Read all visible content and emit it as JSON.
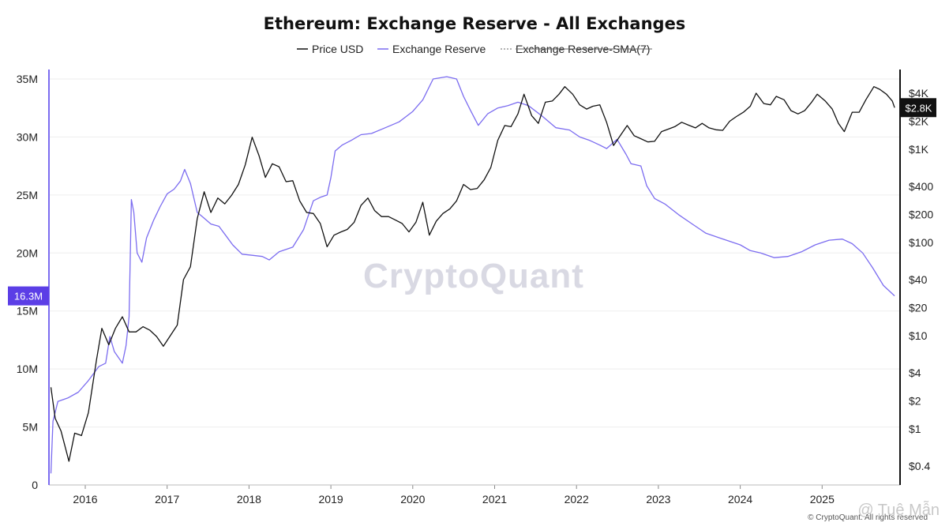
{
  "chart_data": {
    "type": "line",
    "title": "Ethereum: Exchange Reserve - All Exchanges",
    "legend": {
      "placement": "top-center",
      "items": [
        {
          "label": "Price USD",
          "color": "#111111",
          "style": "solid",
          "visible": true
        },
        {
          "label": "Exchange Reserve",
          "color": "#7b6cf0",
          "style": "solid",
          "visible": true
        },
        {
          "label": "Exchange Reserve-SMA(7)",
          "color": "#9a9a9a",
          "style": "dotted",
          "visible": false
        }
      ]
    },
    "x_axis": {
      "ticks": [
        "2016",
        "2017",
        "2018",
        "2019",
        "2020",
        "2021",
        "2022",
        "2023",
        "2024",
        "2025"
      ],
      "range": [
        "2015-08",
        "2025-11"
      ]
    },
    "y_left": {
      "unit": "ETH",
      "ticks": [
        "0",
        "5M",
        "10M",
        "15M",
        "20M",
        "25M",
        "30M",
        "35M"
      ],
      "ylim": [
        0,
        35000000
      ]
    },
    "y_right": {
      "scale": "log",
      "ticks": [
        "$4K",
        "$2K",
        "$1K",
        "$400",
        "$200",
        "$100",
        "$40",
        "$20",
        "$10",
        "$4",
        "$2",
        "$1",
        "$0.4"
      ]
    },
    "grid": true,
    "current_reserve_label": "16.3M",
    "current_price_label": "$2.8K",
    "series": [
      {
        "name": "Exchange Reserve",
        "axis": "left",
        "color": "#7b6cf0",
        "points": [
          [
            "2015-08-01",
            1000000
          ],
          [
            "2015-08-10",
            5500000
          ],
          [
            "2015-09-01",
            7200000
          ],
          [
            "2015-10-15",
            7500000
          ],
          [
            "2015-12-01",
            8000000
          ],
          [
            "2016-01-15",
            9000000
          ],
          [
            "2016-03-01",
            10200000
          ],
          [
            "2016-04-01",
            10500000
          ],
          [
            "2016-04-20",
            12800000
          ],
          [
            "2016-05-10",
            11500000
          ],
          [
            "2016-06-15",
            10500000
          ],
          [
            "2016-07-01",
            12000000
          ],
          [
            "2016-07-15",
            14500000
          ],
          [
            "2016-07-25",
            24600000
          ],
          [
            "2016-08-05",
            23500000
          ],
          [
            "2016-08-20",
            20000000
          ],
          [
            "2016-09-10",
            19200000
          ],
          [
            "2016-10-01",
            21300000
          ],
          [
            "2016-11-01",
            22800000
          ],
          [
            "2016-12-01",
            24000000
          ],
          [
            "2017-01-01",
            25100000
          ],
          [
            "2017-02-01",
            25500000
          ],
          [
            "2017-03-01",
            26200000
          ],
          [
            "2017-03-20",
            27200000
          ],
          [
            "2017-04-15",
            26000000
          ],
          [
            "2017-05-15",
            23500000
          ],
          [
            "2017-06-15",
            23000000
          ],
          [
            "2017-07-15",
            22500000
          ],
          [
            "2017-08-20",
            22300000
          ],
          [
            "2017-09-20",
            21500000
          ],
          [
            "2017-10-20",
            20700000
          ],
          [
            "2017-12-01",
            19900000
          ],
          [
            "2018-01-15",
            19800000
          ],
          [
            "2018-03-01",
            19700000
          ],
          [
            "2018-04-01",
            19400000
          ],
          [
            "2018-05-15",
            20100000
          ],
          [
            "2018-07-15",
            20500000
          ],
          [
            "2018-09-01",
            22000000
          ],
          [
            "2018-10-15",
            24500000
          ],
          [
            "2018-11-15",
            24800000
          ],
          [
            "2018-12-15",
            25000000
          ],
          [
            "2019-01-01",
            26500000
          ],
          [
            "2019-01-20",
            28800000
          ],
          [
            "2019-02-20",
            29300000
          ],
          [
            "2019-04-01",
            29700000
          ],
          [
            "2019-05-15",
            30200000
          ],
          [
            "2019-07-01",
            30300000
          ],
          [
            "2019-09-01",
            30800000
          ],
          [
            "2019-11-01",
            31300000
          ],
          [
            "2020-01-01",
            32200000
          ],
          [
            "2020-02-15",
            33200000
          ],
          [
            "2020-04-01",
            35000000
          ],
          [
            "2020-06-01",
            35200000
          ],
          [
            "2020-07-15",
            35000000
          ],
          [
            "2020-08-15",
            33500000
          ],
          [
            "2020-09-15",
            32300000
          ],
          [
            "2020-10-20",
            31000000
          ],
          [
            "2020-12-01",
            32000000
          ],
          [
            "2021-01-15",
            32500000
          ],
          [
            "2021-03-01",
            32700000
          ],
          [
            "2021-04-15",
            33000000
          ],
          [
            "2021-06-01",
            32700000
          ],
          [
            "2021-08-01",
            31800000
          ],
          [
            "2021-10-01",
            30800000
          ],
          [
            "2021-12-01",
            30600000
          ],
          [
            "2022-01-15",
            30000000
          ],
          [
            "2022-03-01",
            29700000
          ],
          [
            "2022-04-15",
            29300000
          ],
          [
            "2022-05-15",
            29000000
          ],
          [
            "2022-07-01",
            29800000
          ],
          [
            "2022-08-10",
            28500000
          ],
          [
            "2022-09-01",
            27700000
          ],
          [
            "2022-10-15",
            27500000
          ],
          [
            "2022-11-10",
            25800000
          ],
          [
            "2022-12-15",
            24700000
          ],
          [
            "2023-02-01",
            24200000
          ],
          [
            "2023-04-01",
            23300000
          ],
          [
            "2023-06-01",
            22500000
          ],
          [
            "2023-08-01",
            21700000
          ],
          [
            "2023-10-01",
            21300000
          ],
          [
            "2024-01-01",
            20700000
          ],
          [
            "2024-02-15",
            20200000
          ],
          [
            "2024-04-01",
            20000000
          ],
          [
            "2024-06-01",
            19600000
          ],
          [
            "2024-08-01",
            19700000
          ],
          [
            "2024-10-01",
            20100000
          ],
          [
            "2024-12-01",
            20700000
          ],
          [
            "2025-02-01",
            21100000
          ],
          [
            "2025-04-01",
            21200000
          ],
          [
            "2025-05-15",
            20800000
          ],
          [
            "2025-07-01",
            20000000
          ],
          [
            "2025-08-15",
            18700000
          ],
          [
            "2025-10-01",
            17200000
          ],
          [
            "2025-11-20",
            16300000
          ]
        ]
      },
      {
        "name": "Price USD",
        "axis": "right",
        "color": "#111111",
        "points": [
          [
            "2015-08-01",
            2.8
          ],
          [
            "2015-08-20",
            1.3
          ],
          [
            "2015-09-15",
            0.95
          ],
          [
            "2015-10-20",
            0.45
          ],
          [
            "2015-11-15",
            0.9
          ],
          [
            "2015-12-15",
            0.85
          ],
          [
            "2016-01-15",
            1.5
          ],
          [
            "2016-02-20",
            5.5
          ],
          [
            "2016-03-15",
            12
          ],
          [
            "2016-04-15",
            8
          ],
          [
            "2016-05-15",
            12
          ],
          [
            "2016-06-15",
            16
          ],
          [
            "2016-07-15",
            11
          ],
          [
            "2016-08-15",
            11
          ],
          [
            "2016-09-15",
            12.5
          ],
          [
            "2016-10-15",
            11.5
          ],
          [
            "2016-11-15",
            9.8
          ],
          [
            "2016-12-15",
            7.7
          ],
          [
            "2017-01-15",
            10
          ],
          [
            "2017-02-15",
            13
          ],
          [
            "2017-03-15",
            40
          ],
          [
            "2017-04-15",
            55
          ],
          [
            "2017-05-15",
            180
          ],
          [
            "2017-06-15",
            350
          ],
          [
            "2017-07-15",
            210
          ],
          [
            "2017-08-15",
            300
          ],
          [
            "2017-09-15",
            260
          ],
          [
            "2017-10-15",
            320
          ],
          [
            "2017-11-15",
            420
          ],
          [
            "2017-12-15",
            680
          ],
          [
            "2018-01-15",
            1350
          ],
          [
            "2018-02-15",
            850
          ],
          [
            "2018-03-15",
            500
          ],
          [
            "2018-04-15",
            700
          ],
          [
            "2018-05-15",
            650
          ],
          [
            "2018-06-15",
            450
          ],
          [
            "2018-07-15",
            460
          ],
          [
            "2018-08-15",
            280
          ],
          [
            "2018-09-15",
            210
          ],
          [
            "2018-10-15",
            205
          ],
          [
            "2018-11-15",
            160
          ],
          [
            "2018-12-15",
            90
          ],
          [
            "2019-01-15",
            120
          ],
          [
            "2019-02-15",
            130
          ],
          [
            "2019-03-15",
            138
          ],
          [
            "2019-04-15",
            165
          ],
          [
            "2019-05-15",
            250
          ],
          [
            "2019-06-15",
            300
          ],
          [
            "2019-07-15",
            220
          ],
          [
            "2019-08-15",
            190
          ],
          [
            "2019-09-15",
            190
          ],
          [
            "2019-10-15",
            175
          ],
          [
            "2019-11-15",
            160
          ],
          [
            "2019-12-15",
            130
          ],
          [
            "2020-01-15",
            165
          ],
          [
            "2020-02-15",
            270
          ],
          [
            "2020-03-15",
            120
          ],
          [
            "2020-04-15",
            170
          ],
          [
            "2020-05-15",
            205
          ],
          [
            "2020-06-15",
            230
          ],
          [
            "2020-07-15",
            280
          ],
          [
            "2020-08-15",
            420
          ],
          [
            "2020-09-15",
            370
          ],
          [
            "2020-10-15",
            380
          ],
          [
            "2020-11-15",
            470
          ],
          [
            "2020-12-15",
            640
          ],
          [
            "2021-01-15",
            1250
          ],
          [
            "2021-02-15",
            1800
          ],
          [
            "2021-03-15",
            1750
          ],
          [
            "2021-04-15",
            2400
          ],
          [
            "2021-05-12",
            3900
          ],
          [
            "2021-06-15",
            2300
          ],
          [
            "2021-07-15",
            1900
          ],
          [
            "2021-08-15",
            3200
          ],
          [
            "2021-09-15",
            3300
          ],
          [
            "2021-10-15",
            3900
          ],
          [
            "2021-11-10",
            4700
          ],
          [
            "2021-12-15",
            3900
          ],
          [
            "2022-01-15",
            3000
          ],
          [
            "2022-02-15",
            2700
          ],
          [
            "2022-03-15",
            2900
          ],
          [
            "2022-04-15",
            3000
          ],
          [
            "2022-05-15",
            1950
          ],
          [
            "2022-06-15",
            1100
          ],
          [
            "2022-07-15",
            1400
          ],
          [
            "2022-08-15",
            1800
          ],
          [
            "2022-09-15",
            1400
          ],
          [
            "2022-10-15",
            1300
          ],
          [
            "2022-11-15",
            1200
          ],
          [
            "2022-12-15",
            1220
          ],
          [
            "2023-01-15",
            1550
          ],
          [
            "2023-02-15",
            1650
          ],
          [
            "2023-03-15",
            1750
          ],
          [
            "2023-04-15",
            1950
          ],
          [
            "2023-05-15",
            1820
          ],
          [
            "2023-06-15",
            1700
          ],
          [
            "2023-07-15",
            1900
          ],
          [
            "2023-08-15",
            1700
          ],
          [
            "2023-09-15",
            1620
          ],
          [
            "2023-10-15",
            1600
          ],
          [
            "2023-11-15",
            2000
          ],
          [
            "2023-12-15",
            2250
          ],
          [
            "2024-01-15",
            2500
          ],
          [
            "2024-02-15",
            2900
          ],
          [
            "2024-03-12",
            4000
          ],
          [
            "2024-04-15",
            3100
          ],
          [
            "2024-05-15",
            3000
          ],
          [
            "2024-06-10",
            3700
          ],
          [
            "2024-07-15",
            3400
          ],
          [
            "2024-08-15",
            2600
          ],
          [
            "2024-09-15",
            2400
          ],
          [
            "2024-10-15",
            2600
          ],
          [
            "2024-11-15",
            3200
          ],
          [
            "2024-12-10",
            3900
          ],
          [
            "2025-01-15",
            3300
          ],
          [
            "2025-02-15",
            2700
          ],
          [
            "2025-03-15",
            1900
          ],
          [
            "2025-04-10",
            1550
          ],
          [
            "2025-05-15",
            2500
          ],
          [
            "2025-06-15",
            2500
          ],
          [
            "2025-07-15",
            3400
          ],
          [
            "2025-08-20",
            4700
          ],
          [
            "2025-09-15",
            4400
          ],
          [
            "2025-10-15",
            3900
          ],
          [
            "2025-11-10",
            3300
          ],
          [
            "2025-11-20",
            2800
          ]
        ]
      }
    ]
  },
  "watermark": "CryptoQuant",
  "credit": "© CryptoQuant. All rights reserved",
  "overlay_credit": "@ Tuệ Mẫn"
}
